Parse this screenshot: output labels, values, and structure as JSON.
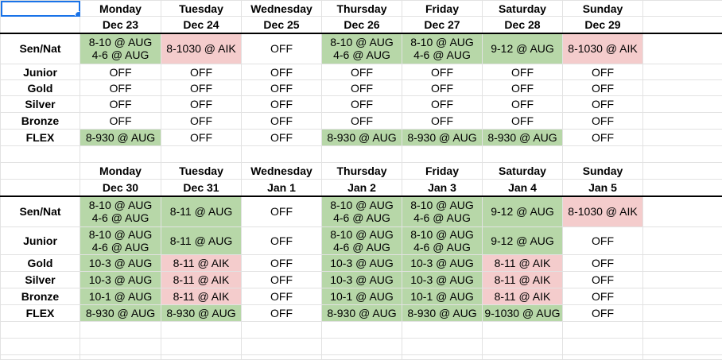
{
  "colors": {
    "green": "#b7d7a8",
    "pink": "#f4cccc",
    "selection": "#1a73e8"
  },
  "weeks": [
    {
      "days": [
        "Monday",
        "Tuesday",
        "Wednesday",
        "Thursday",
        "Friday",
        "Saturday",
        "Sunday"
      ],
      "dates": [
        "Dec 23",
        "Dec 24",
        "Dec 25",
        "Dec 26",
        "Dec 27",
        "Dec 28",
        "Dec 29"
      ],
      "rows": [
        {
          "label": "Sen/Nat",
          "cells": [
            "8-10 @ AUG\n4-6 @ AUG",
            "8-1030 @ AIK",
            "OFF",
            "8-10 @ AUG\n4-6 @ AUG",
            "8-10 @ AUG\n4-6 @ AUG",
            "9-12 @ AUG",
            "8-1030 @ AIK"
          ]
        },
        {
          "label": "Junior",
          "cells": [
            "OFF",
            "OFF",
            "OFF",
            "OFF",
            "OFF",
            "OFF",
            "OFF"
          ]
        },
        {
          "label": "Gold",
          "cells": [
            "OFF",
            "OFF",
            "OFF",
            "OFF",
            "OFF",
            "OFF",
            "OFF"
          ]
        },
        {
          "label": "Silver",
          "cells": [
            "OFF",
            "OFF",
            "OFF",
            "OFF",
            "OFF",
            "OFF",
            "OFF"
          ]
        },
        {
          "label": "Bronze",
          "cells": [
            "OFF",
            "OFF",
            "OFF",
            "OFF",
            "OFF",
            "OFF",
            "OFF"
          ]
        },
        {
          "label": "FLEX",
          "cells": [
            "8-930 @ AUG",
            "OFF",
            "OFF",
            "8-930 @ AUG",
            "8-930 @ AUG",
            "8-930 @ AUG",
            "OFF"
          ]
        }
      ]
    },
    {
      "days": [
        "Monday",
        "Tuesday",
        "Wednesday",
        "Thursday",
        "Friday",
        "Saturday",
        "Sunday"
      ],
      "dates": [
        "Dec 30",
        "Dec 31",
        "Jan 1",
        "Jan 2",
        "Jan 3",
        "Jan 4",
        "Jan 5"
      ],
      "rows": [
        {
          "label": "Sen/Nat",
          "cells": [
            "8-10 @ AUG\n4-6 @ AUG",
            "8-11 @ AUG",
            "OFF",
            "8-10 @ AUG\n4-6 @ AUG",
            "8-10 @ AUG\n4-6 @ AUG",
            "9-12 @ AUG",
            "8-1030 @ AIK"
          ]
        },
        {
          "label": "Junior",
          "cells": [
            "8-10 @ AUG\n4-6 @ AUG",
            "8-11 @ AUG",
            "OFF",
            "8-10 @ AUG\n4-6 @ AUG",
            "8-10 @ AUG\n4-6 @ AUG",
            "9-12 @ AUG",
            "OFF"
          ]
        },
        {
          "label": "Gold",
          "cells": [
            "10-3 @ AUG",
            "8-11 @ AIK",
            "OFF",
            "10-3 @ AUG",
            "10-3 @ AUG",
            "8-11 @ AIK",
            "OFF"
          ]
        },
        {
          "label": "Silver",
          "cells": [
            "10-3 @ AUG",
            "8-11 @ AIK",
            "OFF",
            "10-3 @ AUG",
            "10-3 @ AUG",
            "8-11 @ AIK",
            "OFF"
          ]
        },
        {
          "label": "Bronze",
          "cells": [
            "10-1 @ AUG",
            "8-11 @ AIK",
            "OFF",
            "10-1 @ AUG",
            "10-1 @ AUG",
            "8-11 @ AIK",
            "OFF"
          ]
        },
        {
          "label": "FLEX",
          "cells": [
            "8-930 @ AUG",
            "8-930 @ AUG",
            "OFF",
            "8-930 @ AUG",
            "8-930 @ AUG",
            "9-1030 @ AUG",
            "OFF"
          ]
        }
      ]
    }
  ]
}
